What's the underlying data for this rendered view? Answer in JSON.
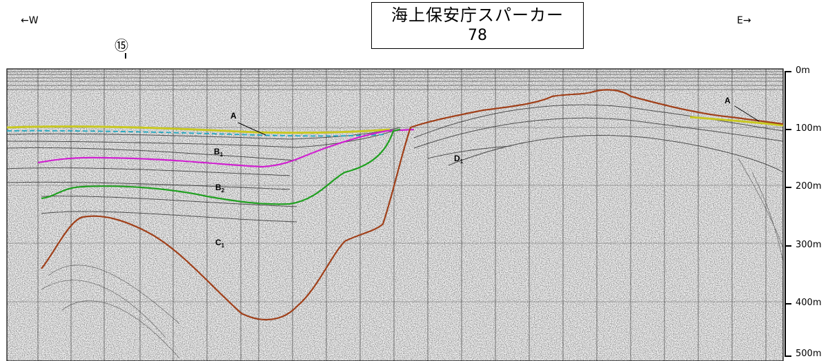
{
  "header": {
    "west_label": "←W",
    "east_label": "E→",
    "title": "海上保安庁スパーカー",
    "line_number": "78",
    "station_marker": "⑮"
  },
  "depth_scale": [
    "0m",
    "100m",
    "200m",
    "300m",
    "400m",
    "500m"
  ],
  "units": [
    {
      "id": "A-left",
      "main": "A",
      "sub": ""
    },
    {
      "id": "A-right",
      "main": "A",
      "sub": ""
    },
    {
      "id": "B1",
      "main": "B",
      "sub": "1"
    },
    {
      "id": "B2",
      "main": "B",
      "sub": "2"
    },
    {
      "id": "C1",
      "main": "C",
      "sub": "1"
    },
    {
      "id": "D1",
      "main": "D",
      "sub": "1"
    }
  ],
  "colors": {
    "seafloor_yellow": "#c8c820",
    "cyan_reflector": "#20a8c0",
    "magenta_reflector": "#d020d0",
    "green_reflector": "#20a020",
    "brown_reflector": "#a0401a"
  }
}
